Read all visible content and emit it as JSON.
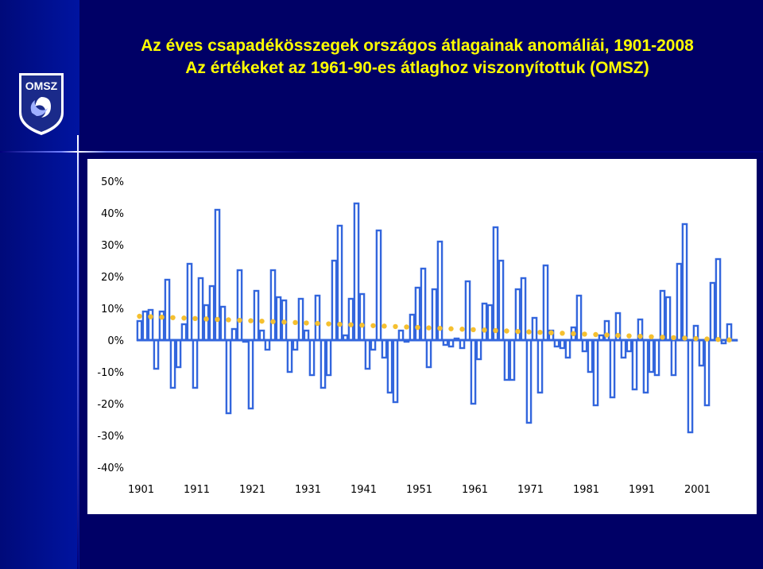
{
  "title": {
    "line1": "Az éves csapadékösszegek országos átlagainak anomáliái, 1901-2008",
    "line2": "Az értékeket az 1961-90-es átlaghoz viszonyítottuk (OMSZ)"
  },
  "logo": {
    "text": "OMSZ"
  },
  "colors": {
    "background": "#000066",
    "title": "#ffff00",
    "bars": "#3366dd",
    "trend": "#f5c030",
    "plot": "#ffffff"
  },
  "chart_data": {
    "type": "bar",
    "title": "Az éves csapadékösszegek országos átlagainak anomáliái, 1901-2008",
    "subtitle": "Az értékeket az 1961-90-es átlaghoz viszonyítottuk (OMSZ)",
    "xlabel": "",
    "ylabel": "",
    "ylim": [
      -40,
      50
    ],
    "yticks": [
      "50%",
      "40%",
      "30%",
      "20%",
      "10%",
      "0%",
      "-10%",
      "-20%",
      "-30%",
      "-40%"
    ],
    "xticks": [
      "1901",
      "1911",
      "1921",
      "1931",
      "1941",
      "1951",
      "1961",
      "1971",
      "1981",
      "1991",
      "2001"
    ],
    "x_start": 1901,
    "x_end": 2008,
    "grid": false,
    "series": [
      {
        "kind": "anomaly",
        "values": [
          6,
          9,
          9.5,
          -9,
          9,
          19,
          -15,
          -8.5,
          5,
          24,
          -15,
          19.5,
          11,
          17,
          41,
          10.5,
          -23,
          3.5,
          22,
          -0.5,
          -21.5,
          15.5,
          3,
          -3,
          22,
          13.5,
          12.5,
          -10,
          -3,
          13,
          3,
          -11,
          14,
          -15,
          -11,
          25,
          36,
          1.5,
          13,
          43,
          14.5,
          -9,
          -3,
          34.5,
          -5.5,
          -16.5,
          -19.5,
          3,
          -0.5,
          8,
          16.5,
          22.5,
          -8.5,
          16,
          31,
          -1.5,
          -2,
          0.5,
          -2.5,
          18.5,
          -20,
          -6,
          11.5,
          11,
          35.5,
          25,
          -12.5,
          -12.5,
          16,
          19.5,
          -26,
          7,
          -16.5,
          23.5,
          3,
          -2,
          -2.5,
          -5.5,
          4,
          14,
          -3.5,
          -10,
          -20.5,
          1.5,
          6,
          -18,
          8.5,
          -5.5,
          -3.5,
          -15.5,
          6.5,
          -16.5,
          -10,
          -11,
          15.5,
          13.5,
          -11,
          24,
          36.5,
          -29,
          4.5,
          -8,
          -20.5,
          18,
          25.5,
          -1,
          5,
          0
        ]
      },
      {
        "kind": "trend",
        "x": [
          1901,
          2008
        ],
        "y": [
          7.5,
          0
        ]
      }
    ]
  }
}
